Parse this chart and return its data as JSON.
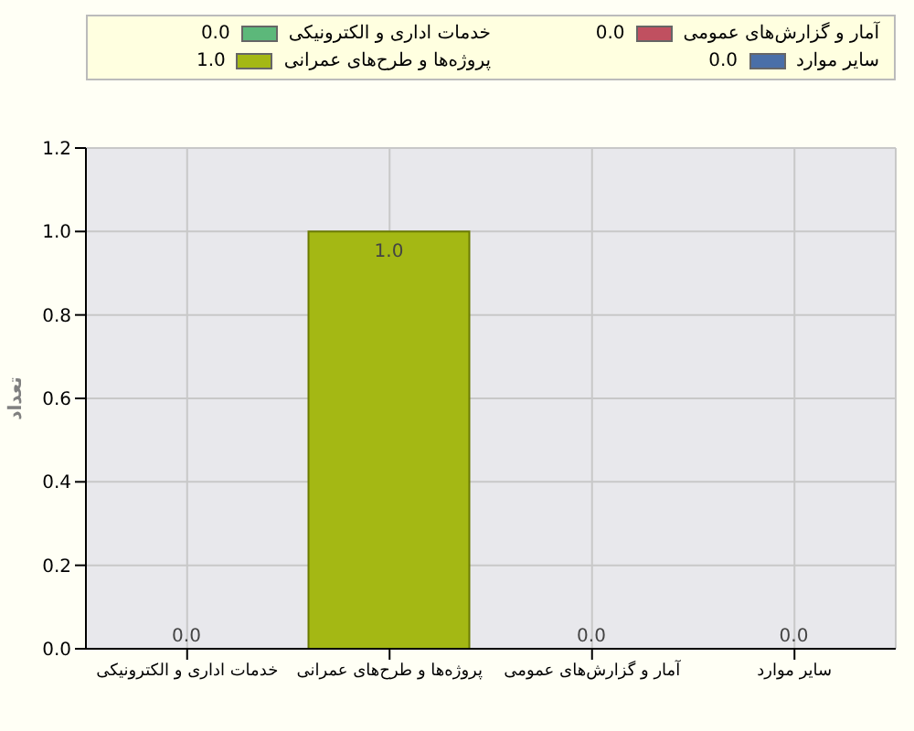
{
  "chart_data": {
    "type": "bar",
    "ylabel": "تعداد",
    "categories": [
      "خدمات اداری و الکترونیکی",
      "پروژه‌ها و طرح‌های عمرانی",
      "آمار و گزارش‌های عمومی",
      "سایر موارد"
    ],
    "series": [
      {
        "name": "خدمات اداری و الکترونیکی",
        "color": "#5cb87a",
        "values": [
          0,
          null,
          null,
          null
        ],
        "value_labels": [
          "0.0",
          null,
          null,
          null
        ]
      },
      {
        "name": "پروژه‌ها و طرح‌های عمرانی",
        "color": "#a4b814",
        "values": [
          null,
          1,
          null,
          null
        ],
        "value_labels": [
          null,
          "1.0",
          null,
          null
        ]
      },
      {
        "name": "آمار و گزارش‌های عمومی",
        "color": "#c05060",
        "values": [
          null,
          null,
          0,
          null
        ],
        "value_labels": [
          null,
          null,
          "0.0",
          null
        ]
      },
      {
        "name": "سایر موارد",
        "color": "#4a6fa8",
        "values": [
          null,
          null,
          null,
          0
        ],
        "value_labels": [
          null,
          null,
          null,
          "0.0"
        ]
      }
    ],
    "ylim": [
      0,
      1.2
    ],
    "yticks": [
      {
        "value": 0,
        "label": "0.0"
      },
      {
        "value": 0.2,
        "label": "0.2"
      },
      {
        "value": 0.4,
        "label": "0.4"
      },
      {
        "value": 0.6,
        "label": "0.6"
      },
      {
        "value": 0.8,
        "label": "0.8"
      },
      {
        "value": 1,
        "label": "1.0"
      },
      {
        "value": 1.2,
        "label": "1.2"
      }
    ],
    "grid": true,
    "legend": "top"
  }
}
